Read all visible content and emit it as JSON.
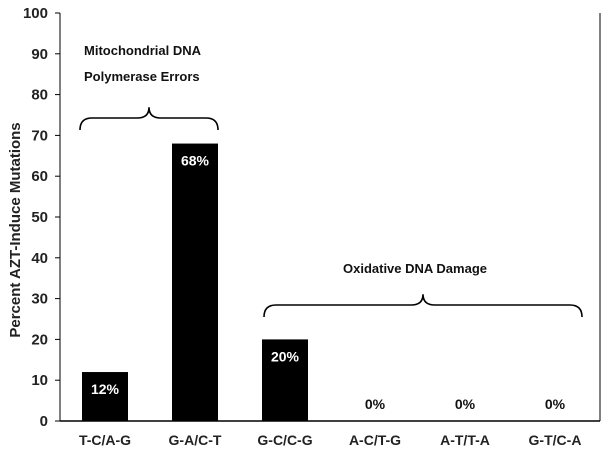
{
  "chart_data": {
    "type": "bar",
    "ylabel": "Percent AZT-Induce Mutations",
    "xlabel": "",
    "ylim": [
      0,
      100
    ],
    "yticks": [
      0,
      10,
      20,
      30,
      40,
      50,
      60,
      70,
      80,
      90,
      100
    ],
    "categories": [
      "T-C/A-G",
      "G-A/C-T",
      "G-C/C-G",
      "A-C/T-G",
      "A-T/T-A",
      "G-T/C-A"
    ],
    "values": [
      12,
      68,
      20,
      0,
      0,
      0
    ],
    "data_labels": [
      "12%",
      "68%",
      "20%",
      "0%",
      "0%",
      "0%"
    ],
    "bar_color": "#000000",
    "grid": false,
    "annotations": [
      {
        "lines": [
          "Mitochondrial DNA",
          "Polymerase Errors"
        ],
        "spans_categories": [
          "T-C/A-G",
          "G-A/C-T"
        ]
      },
      {
        "lines": [
          "Oxidative DNA Damage"
        ],
        "spans_categories": [
          "G-C/C-G",
          "G-T/C-A"
        ]
      }
    ]
  }
}
